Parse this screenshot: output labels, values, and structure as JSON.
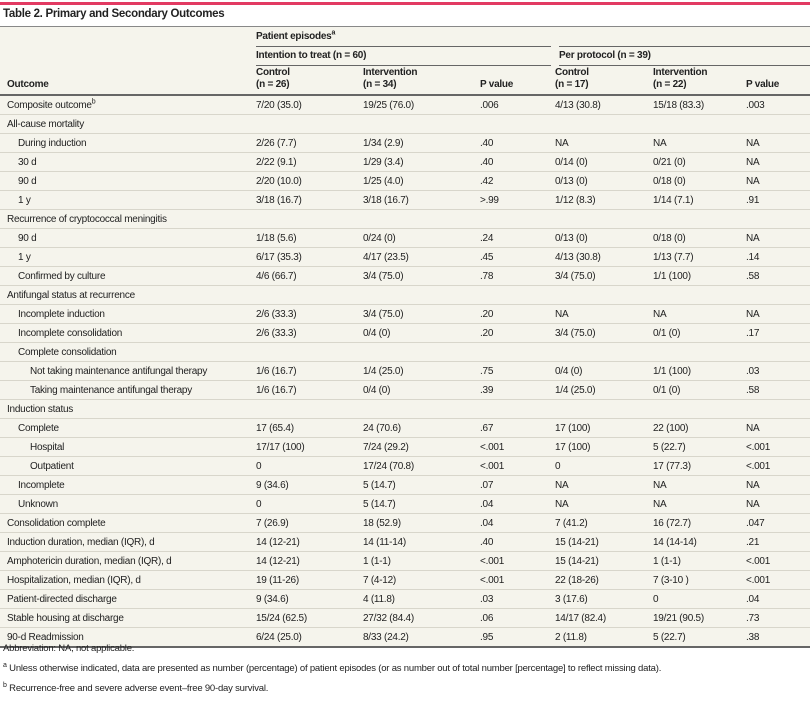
{
  "title": "Table 2. Primary and Secondary Outcomes",
  "header": {
    "group": "Patient episodes",
    "group_sup": "a",
    "itt": "Intention to treat (n = 60)",
    "pp": "Per protocol (n = 39)",
    "outcome": "Outcome",
    "cols": [
      "Control",
      "(n = 26)",
      "Intervention",
      "(n = 34)",
      "P value",
      "Control",
      "(n = 17)",
      "Intervention",
      "(n = 22)",
      "P value"
    ]
  },
  "rows": [
    {
      "label": "Composite outcome",
      "sup": "b",
      "indent": 0,
      "cells": [
        "7/20 (35.0)",
        "19/25 (76.0)",
        ".006",
        "4/13 (30.8)",
        "15/18 (83.3)",
        ".003"
      ]
    },
    {
      "label": "All-cause mortality",
      "indent": 0,
      "cells": []
    },
    {
      "label": "During induction",
      "indent": 1,
      "cells": [
        "2/26 (7.7)",
        "1/34 (2.9)",
        ".40",
        "NA",
        "NA",
        "NA"
      ]
    },
    {
      "label": "30 d",
      "indent": 1,
      "cells": [
        "2/22 (9.1)",
        "1/29 (3.4)",
        ".40",
        "0/14 (0)",
        "0/21 (0)",
        "NA"
      ]
    },
    {
      "label": "90 d",
      "indent": 1,
      "cells": [
        "2/20 (10.0)",
        "1/25 (4.0)",
        ".42",
        "0/13 (0)",
        "0/18 (0)",
        "NA"
      ]
    },
    {
      "label": "1 y",
      "indent": 1,
      "cells": [
        "3/18 (16.7)",
        "3/18 (16.7)",
        ">.99",
        "1/12 (8.3)",
        "1/14 (7.1)",
        ".91"
      ]
    },
    {
      "label": "Recurrence of cryptococcal meningitis",
      "indent": 0,
      "cells": []
    },
    {
      "label": "90 d",
      "indent": 1,
      "cells": [
        "1/18 (5.6)",
        "0/24 (0)",
        ".24",
        "0/13 (0)",
        "0/18 (0)",
        "NA"
      ]
    },
    {
      "label": "1 y",
      "indent": 1,
      "cells": [
        "6/17 (35.3)",
        "4/17 (23.5)",
        ".45",
        "4/13 (30.8)",
        "1/13 (7.7)",
        ".14"
      ]
    },
    {
      "label": "Confirmed by culture",
      "indent": 1,
      "cells": [
        "4/6 (66.7)",
        "3/4 (75.0)",
        ".78",
        "3/4 (75.0)",
        "1/1 (100)",
        ".58"
      ]
    },
    {
      "label": "Antifungal status at recurrence",
      "indent": 0,
      "cells": []
    },
    {
      "label": "Incomplete induction",
      "indent": 1,
      "cells": [
        "2/6 (33.3)",
        "3/4 (75.0)",
        ".20",
        "NA",
        "NA",
        "NA"
      ]
    },
    {
      "label": "Incomplete consolidation",
      "indent": 1,
      "cells": [
        "2/6 (33.3)",
        "0/4 (0)",
        ".20",
        "3/4 (75.0)",
        "0/1 (0)",
        ".17"
      ]
    },
    {
      "label": "Complete consolidation",
      "indent": 1,
      "cells": []
    },
    {
      "label": "Not taking maintenance antifungal therapy",
      "indent": 2,
      "cells": [
        "1/6 (16.7)",
        "1/4 (25.0)",
        ".75",
        "0/4 (0)",
        "1/1 (100)",
        ".03"
      ]
    },
    {
      "label": "Taking maintenance antifungal therapy",
      "indent": 2,
      "cells": [
        "1/6 (16.7)",
        "0/4 (0)",
        ".39",
        "1/4 (25.0)",
        "0/1 (0)",
        ".58"
      ]
    },
    {
      "label": "Induction status",
      "indent": 0,
      "cells": []
    },
    {
      "label": "Complete",
      "indent": 1,
      "cells": [
        "17 (65.4)",
        "24 (70.6)",
        ".67",
        "17 (100)",
        "22 (100)",
        "NA"
      ]
    },
    {
      "label": "Hospital",
      "indent": 2,
      "cells": [
        "17/17 (100)",
        "7/24 (29.2)",
        "<.001",
        "17 (100)",
        "5 (22.7)",
        "<.001"
      ]
    },
    {
      "label": "Outpatient",
      "indent": 2,
      "cells": [
        "0",
        "17/24 (70.8)",
        "<.001",
        "0",
        "17 (77.3)",
        "<.001"
      ]
    },
    {
      "label": "Incomplete",
      "indent": 1,
      "cells": [
        "9 (34.6)",
        "5 (14.7)",
        ".07",
        "NA",
        "NA",
        "NA"
      ]
    },
    {
      "label": "Unknown",
      "indent": 1,
      "cells": [
        "0",
        "5 (14.7)",
        ".04",
        "NA",
        "NA",
        "NA"
      ]
    },
    {
      "label": "Consolidation complete",
      "indent": 0,
      "cells": [
        "7 (26.9)",
        "18 (52.9)",
        ".04",
        "7 (41.2)",
        "16 (72.7)",
        ".047"
      ]
    },
    {
      "label": "Induction duration, median (IQR), d",
      "indent": 0,
      "cells": [
        "14 (12-21)",
        "14 (11-14)",
        ".40",
        "15 (14-21)",
        "14 (14-14)",
        ".21"
      ]
    },
    {
      "label": "Amphotericin duration, median (IQR), d",
      "indent": 0,
      "cells": [
        "14 (12-21)",
        "1 (1-1)",
        "<.001",
        "15 (14-21)",
        "1 (1-1)",
        "<.001"
      ]
    },
    {
      "label": "Hospitalization, median (IQR), d",
      "indent": 0,
      "cells": [
        "19 (11-26)",
        "7 (4-12)",
        "<.001",
        "22 (18-26)",
        "7 (3-10 )",
        "<.001"
      ]
    },
    {
      "label": "Patient-directed discharge",
      "indent": 0,
      "cells": [
        "9 (34.6)",
        "4 (11.8)",
        ".03",
        "3 (17.6)",
        "0",
        ".04"
      ]
    },
    {
      "label": "Stable housing at discharge",
      "indent": 0,
      "cells": [
        "15/24 (62.5)",
        "27/32 (84.4)",
        ".06",
        "14/17 (82.4)",
        "19/21 (90.5)",
        ".73"
      ]
    },
    {
      "label": "90-d Readmission",
      "indent": 0,
      "cells": [
        "6/24 (25.0)",
        "8/33 (24.2)",
        ".95",
        "2 (11.8)",
        "5 (22.7)",
        ".38"
      ]
    }
  ],
  "notes": {
    "abbreviation": "Abbreviation: NA, not applicable.",
    "a_mark": "a",
    "a": "Unless otherwise indicated, data are presented as number (percentage) of patient episodes (or as number out of total number [percentage] to reflect missing data).",
    "b_mark": "b",
    "b": "Recurrence-free and severe adverse event–free 90-day survival."
  }
}
